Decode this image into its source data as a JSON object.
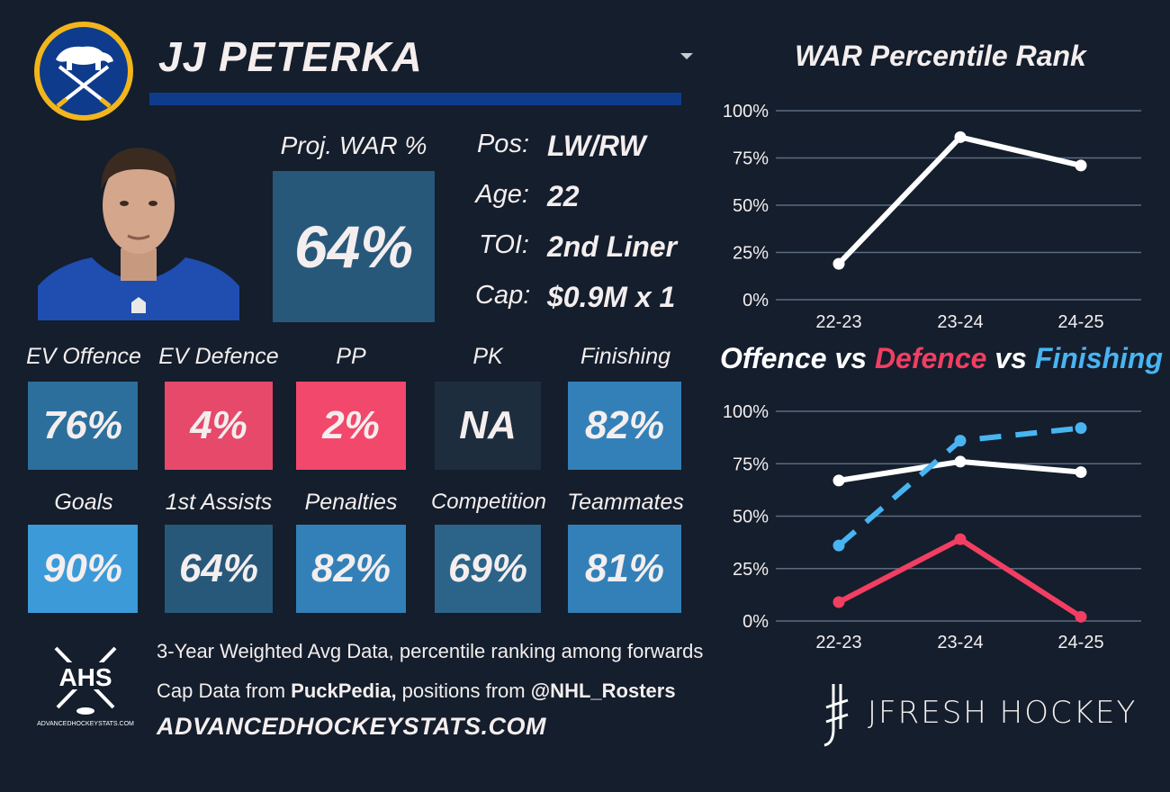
{
  "player": {
    "name": "JJ PETERKA",
    "proj_war_label": "Proj. WAR %",
    "proj_war_value": "64%",
    "info": [
      {
        "key": "Pos:",
        "value": "LW/RW"
      },
      {
        "key": "Age:",
        "value": "22"
      },
      {
        "key": "TOI:",
        "value": "2nd Liner"
      },
      {
        "key": "Cap:",
        "value": "$0.9M x 1"
      }
    ]
  },
  "metrics": [
    {
      "label": "EV Offence",
      "value": "76%",
      "color": "#2c6f9c"
    },
    {
      "label": "EV Defence",
      "value": "4%",
      "color": "#e6496a"
    },
    {
      "label": "PP",
      "value": "2%",
      "color": "#f2486b"
    },
    {
      "label": "PK",
      "value": "NA",
      "color": "#1e2d3e"
    },
    {
      "label": "Finishing",
      "value": "82%",
      "color": "#3380b8"
    },
    {
      "label": "Goals",
      "value": "90%",
      "color": "#3c9ad9"
    },
    {
      "label": "1st Assists",
      "value": "64%",
      "color": "#27587a"
    },
    {
      "label": "Penalties",
      "value": "82%",
      "color": "#3380b8"
    },
    {
      "label": "Competition",
      "value": "69%",
      "color": "#2c6389"
    },
    {
      "label": "Teammates",
      "value": "81%",
      "color": "#3380b8"
    }
  ],
  "footer": {
    "line1": "3-Year Weighted Avg Data, percentile ranking among forwards",
    "line2_prefix": "Cap Data from ",
    "line2_source1": "PuckPedia,",
    "line2_middle": " positions from ",
    "line2_source2": "@NHL_Rosters",
    "site": "ADVANCEDHOCKEYSTATS.COM",
    "ahs_logo_text": "AHS",
    "ahs_logo_subtext": "ADVANCEDHOCKEYSTATS.COM",
    "brand": "JFRESH HOCKEY"
  },
  "icons": {
    "team_logo": "sabres-logo-icon",
    "dropdown": "caret-down-icon",
    "ahs": "ahs-logo-icon",
    "jfresh": "jfresh-mark-icon"
  },
  "chart_data": [
    {
      "type": "line",
      "title": "WAR Percentile Rank",
      "categories": [
        "22-23",
        "23-24",
        "24-25"
      ],
      "yticks": [
        "0%",
        "25%",
        "50%",
        "75%",
        "100%"
      ],
      "ylim": [
        0,
        100
      ],
      "grid": true,
      "series": [
        {
          "values": [
            19,
            86,
            71
          ],
          "color": "#ffffff",
          "dash": false
        }
      ]
    },
    {
      "type": "line",
      "title_parts": [
        {
          "text": "Offence",
          "color": "#ffffff"
        },
        {
          "text": " vs ",
          "color": "#ffffff"
        },
        {
          "text": "Defence",
          "color": "#f23e62"
        },
        {
          "text": " vs ",
          "color": "#ffffff"
        },
        {
          "text": "Finishing",
          "color": "#49b4f2"
        }
      ],
      "categories": [
        "22-23",
        "23-24",
        "24-25"
      ],
      "yticks": [
        "0%",
        "25%",
        "50%",
        "75%",
        "100%"
      ],
      "ylim": [
        0,
        100
      ],
      "grid": true,
      "series": [
        {
          "name": "Offence",
          "values": [
            67,
            76,
            71
          ],
          "color": "#ffffff",
          "dash": false
        },
        {
          "name": "Defence",
          "values": [
            9,
            39,
            2
          ],
          "color": "#f23e62",
          "dash": false
        },
        {
          "name": "Finishing",
          "values": [
            36,
            86,
            92
          ],
          "color": "#49b4f2",
          "dash": true
        }
      ]
    }
  ]
}
